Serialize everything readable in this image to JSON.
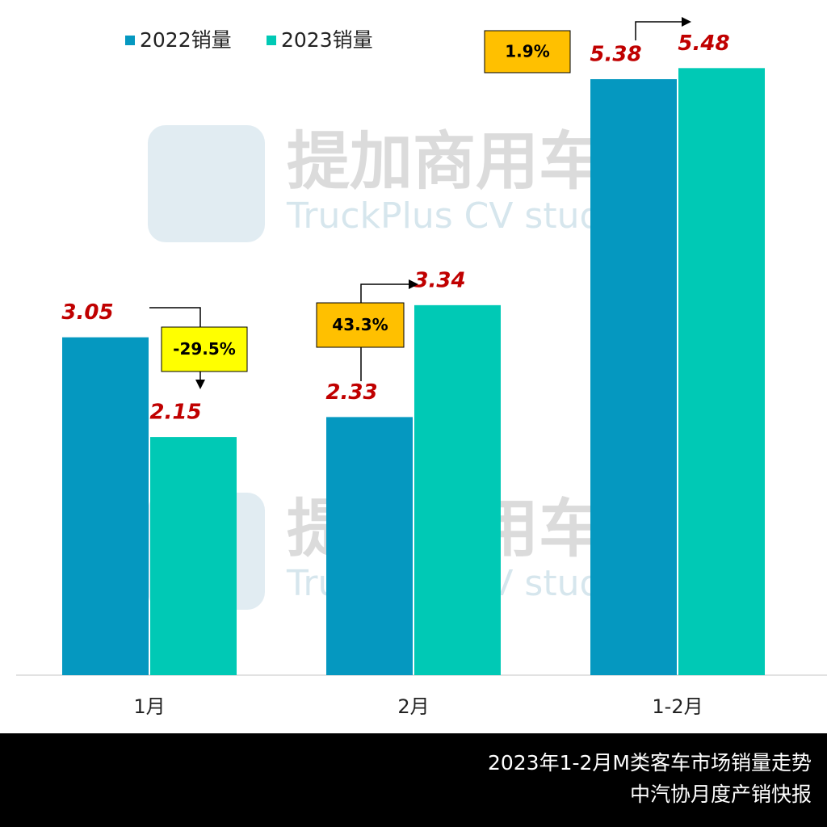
{
  "chart_data": {
    "type": "bar",
    "categories": [
      "1月",
      "2月",
      "1-2月"
    ],
    "series": [
      {
        "name": "2022销量",
        "color": "#0598c0",
        "values": [
          3.05,
          2.33,
          5.38
        ]
      },
      {
        "name": "2023销量",
        "color": "#00c9b5",
        "values": [
          2.15,
          3.34,
          5.48
        ]
      }
    ],
    "ylim": [
      0,
      6
    ],
    "annotations": [
      {
        "text": "-29.5%",
        "color": "#ffff00"
      },
      {
        "text": "43.3%",
        "color": "#ffc000"
      },
      {
        "text": "1.9%",
        "color": "#ffc000"
      }
    ],
    "legend": "top-left"
  },
  "watermark": {
    "title": "提加商用车",
    "subtitle": "TruckPlus CV studio"
  },
  "footer": {
    "title": "2023年1-2月M类客车市场销量走势",
    "source": "中汽协月度产销快报"
  }
}
